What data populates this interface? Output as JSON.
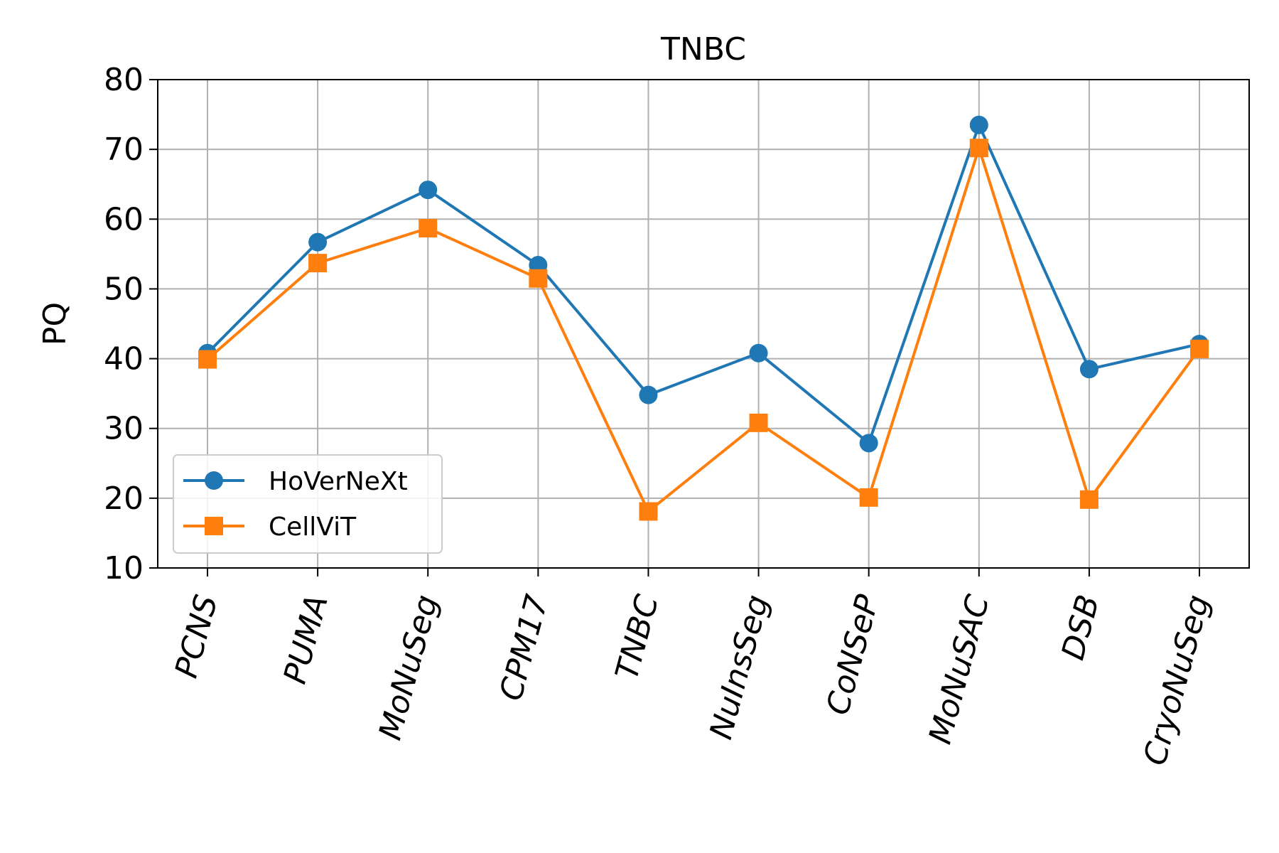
{
  "chart_data": {
    "type": "line",
    "title": "TNBC",
    "xlabel": "",
    "ylabel": "PQ",
    "ylim": [
      10,
      80
    ],
    "yticks": [
      10,
      20,
      30,
      40,
      50,
      60,
      70,
      80
    ],
    "grid": true,
    "legend_position": "lower-left",
    "categories": [
      "PCNS",
      "PUMA",
      "MoNuSeg",
      "CPM17",
      "TNBC",
      "NuInsSeg",
      "CoNSeP",
      "MoNuSAC",
      "DSB",
      "CryoNuSeg"
    ],
    "series": [
      {
        "name": "HoVerNeXt",
        "color": "#1f77b4",
        "marker": "circle",
        "values": [
          40.8,
          56.7,
          64.2,
          53.4,
          34.8,
          40.8,
          27.9,
          73.5,
          38.5,
          42.1
        ]
      },
      {
        "name": "CellViT",
        "color": "#ff7f0e",
        "marker": "square",
        "values": [
          39.9,
          53.7,
          58.7,
          51.5,
          18.1,
          30.8,
          20.1,
          70.2,
          19.8,
          41.4
        ]
      }
    ]
  }
}
